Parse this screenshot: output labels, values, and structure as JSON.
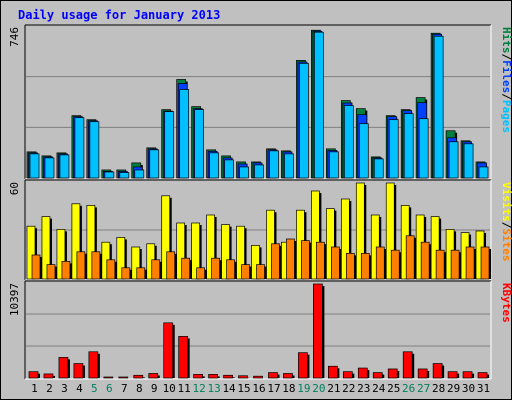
{
  "title": "Daily usage for January 2013",
  "colors": {
    "background": "#c0c0c0",
    "title": "#0000ff",
    "hits": "#008040",
    "files": "#0040ff",
    "pages": "#00c0ff",
    "visits": "#ffff00",
    "sites": "#ff8000",
    "kbytes": "#ff0000",
    "weekend_day_label": "#00805c",
    "weekday_label": "#000000"
  },
  "panels": {
    "hits": {
      "max_label": "746",
      "legend": [
        {
          "text": "Pages",
          "color": "#00c0ff"
        },
        {
          "text": "/",
          "color": "#000000"
        },
        {
          "text": "Files",
          "color": "#0040ff"
        },
        {
          "text": "/",
          "color": "#000000"
        },
        {
          "text": "Hits",
          "color": "#008040"
        }
      ]
    },
    "visits": {
      "max_label": "60",
      "legend": [
        {
          "text": "Sites",
          "color": "#ff8000"
        },
        {
          "text": "/",
          "color": "#000000"
        },
        {
          "text": "Visits",
          "color": "#ffff00"
        }
      ]
    },
    "kbytes": {
      "max_label": "10397",
      "legend": [
        {
          "text": "KBytes",
          "color": "#ff0000"
        }
      ]
    }
  },
  "chart_data": {
    "type": "bar",
    "title": "Daily usage for January 2013",
    "categories": [
      "1",
      "2",
      "3",
      "4",
      "5",
      "6",
      "7",
      "8",
      "9",
      "10",
      "11",
      "12",
      "13",
      "14",
      "15",
      "16",
      "17",
      "18",
      "19",
      "20",
      "21",
      "22",
      "23",
      "24",
      "25",
      "26",
      "27",
      "28",
      "29",
      "30",
      "31"
    ],
    "weekend_days": [
      "5",
      "6",
      "12",
      "13",
      "19",
      "20",
      "26",
      "27"
    ],
    "series": [
      {
        "name": "Hits",
        "panel": "hits",
        "ylim": [
          0,
          746
        ],
        "values": [
          130,
          110,
          125,
          310,
          290,
          40,
          40,
          75,
          150,
          340,
          490,
          355,
          140,
          110,
          80,
          80,
          145,
          135,
          585,
          735,
          145,
          385,
          345,
          105,
          310,
          340,
          400,
          720,
          235,
          185,
          80
        ]
      },
      {
        "name": "Files",
        "panel": "hits",
        "ylim": [
          0,
          746
        ],
        "values": [
          125,
          105,
          120,
          305,
          285,
          33,
          33,
          55,
          145,
          333,
          470,
          345,
          133,
          100,
          70,
          75,
          140,
          130,
          577,
          730,
          137,
          373,
          315,
          100,
          305,
          335,
          375,
          715,
          200,
          180,
          75
        ]
      },
      {
        "name": "Pages",
        "panel": "hits",
        "ylim": [
          0,
          746
        ],
        "values": [
          120,
          100,
          115,
          300,
          280,
          30,
          27,
          40,
          140,
          330,
          440,
          340,
          125,
          90,
          55,
          65,
          135,
          120,
          570,
          725,
          130,
          360,
          270,
          95,
          290,
          320,
          295,
          705,
          180,
          170,
          55
        ]
      },
      {
        "name": "Visits",
        "panel": "visits",
        "ylim": [
          0,
          60
        ],
        "values": [
          33,
          39,
          31,
          47,
          46,
          23,
          26,
          20,
          22,
          52,
          35,
          35,
          40,
          34,
          33,
          21,
          43,
          23,
          43,
          55,
          44,
          50,
          60,
          40,
          60,
          46,
          40,
          39,
          31,
          29,
          30
        ]
      },
      {
        "name": "Sites",
        "panel": "visits",
        "ylim": [
          0,
          60
        ],
        "values": [
          15,
          9,
          11,
          17,
          17,
          12,
          7,
          7,
          12,
          17,
          13,
          7,
          13,
          12,
          9,
          9,
          22,
          25,
          24,
          23,
          20,
          16,
          16,
          20,
          18,
          27,
          23,
          18,
          18,
          20,
          20
        ]
      },
      {
        "name": "KBytes",
        "panel": "kbytes",
        "ylim": [
          0,
          10397
        ],
        "values": [
          700,
          450,
          2280,
          1600,
          2900,
          100,
          100,
          300,
          500,
          6100,
          4600,
          400,
          400,
          300,
          250,
          200,
          600,
          500,
          2800,
          10397,
          1300,
          700,
          1100,
          600,
          1000,
          2900,
          1000,
          1600,
          700,
          700,
          600
        ]
      }
    ]
  }
}
